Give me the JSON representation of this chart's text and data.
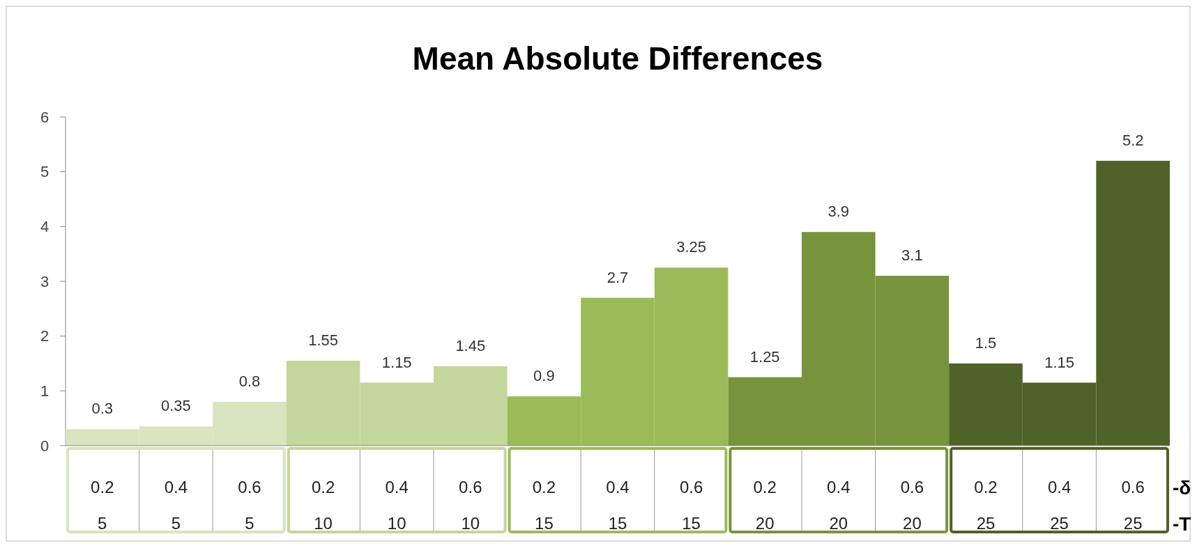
{
  "chart_data": {
    "type": "bar",
    "title": "Mean Absolute Differences",
    "categories": [
      "0.2\n5",
      "0.4\n5",
      "0.6\n5",
      "0.2\n10",
      "0.4\n10",
      "0.6\n10",
      "0.2\n15",
      "0.4\n15",
      "0.6\n15",
      "0.2\n20",
      "0.4\n20",
      "0.6\n20",
      "0.2\n25",
      "0.4\n25",
      "0.6\n25"
    ],
    "values": [
      0.3,
      0.35,
      0.8,
      1.55,
      1.15,
      1.45,
      0.9,
      2.7,
      3.25,
      1.25,
      3.9,
      3.1,
      1.5,
      1.15,
      5.2
    ],
    "colors": [
      "#d7e4bd",
      "#d7e4bd",
      "#d7e4bd",
      "#c3d69b",
      "#c3d69b",
      "#c3d69b",
      "#9bbb59",
      "#9bbb59",
      "#9bbb59",
      "#77933c",
      "#77933c",
      "#77933c",
      "#4f6228",
      "#4f6228",
      "#4f6228"
    ],
    "ylim": [
      0,
      6
    ],
    "yticks": [
      0,
      1,
      2,
      3,
      4,
      5,
      6
    ],
    "data_labels": true,
    "annotations": [
      "-δ",
      "-T"
    ]
  }
}
